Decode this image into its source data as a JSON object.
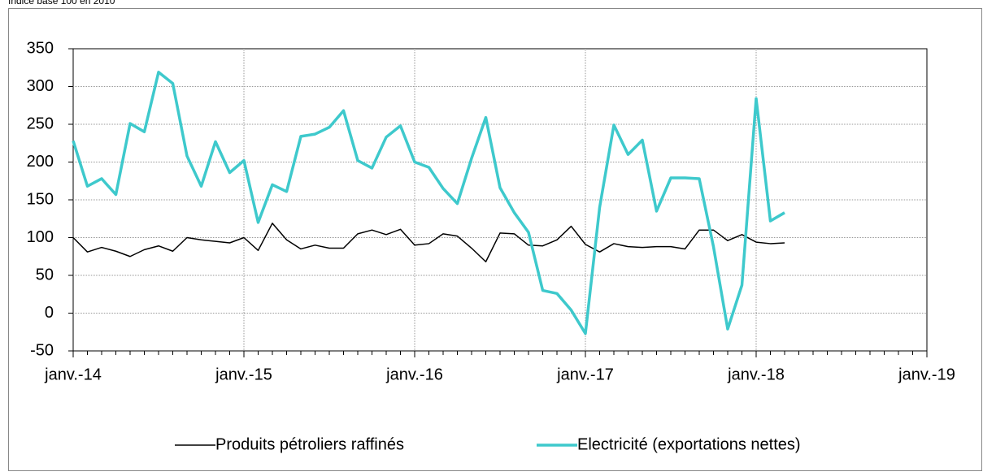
{
  "chart_data": {
    "type": "line",
    "subtitle": "Indice base 100 en 2010",
    "categories": [
      "janv.-14",
      null,
      null,
      null,
      null,
      null,
      null,
      null,
      null,
      null,
      null,
      null,
      "janv.-15",
      null,
      null,
      null,
      null,
      null,
      null,
      null,
      null,
      null,
      null,
      null,
      "janv.-16",
      null,
      null,
      null,
      null,
      null,
      null,
      null,
      null,
      null,
      null,
      null,
      "janv.-17",
      null,
      null,
      null,
      null,
      null,
      null,
      null,
      null,
      null,
      null,
      null,
      "janv.-18",
      null,
      null,
      null,
      null,
      null,
      null,
      null,
      null,
      null,
      null,
      null,
      "janv.-19"
    ],
    "series": [
      {
        "name": "Produits pétroliers raffinés",
        "color": "#000000",
        "width": 1.5,
        "values": [
          100,
          81,
          87,
          82,
          75,
          84,
          89,
          82,
          100,
          97,
          95,
          93,
          100,
          83,
          119,
          97,
          85,
          90,
          86,
          86,
          105,
          110,
          104,
          111,
          90,
          92,
          105,
          102,
          86,
          68,
          106,
          105,
          90,
          89,
          97,
          115,
          91,
          81,
          92,
          88,
          87,
          88,
          88,
          85,
          110,
          110,
          96,
          104,
          94,
          92,
          93,
          null,
          null,
          null,
          null,
          null,
          null,
          null,
          null,
          null,
          null
        ]
      },
      {
        "name": "Electricité (exportations nettes)",
        "color": "#3ec9cc",
        "width": 3.5,
        "values": [
          228,
          168,
          178,
          157,
          251,
          240,
          319,
          304,
          208,
          168,
          227,
          186,
          202,
          120,
          170,
          161,
          234,
          237,
          246,
          268,
          202,
          192,
          233,
          248,
          200,
          193,
          165,
          145,
          205,
          259,
          166,
          133,
          107,
          30,
          26,
          4,
          -27,
          140,
          249,
          210,
          229,
          135,
          179,
          179,
          178,
          88,
          -21,
          37,
          284,
          122,
          133,
          null,
          null,
          null,
          null,
          null,
          null,
          null,
          null,
          null,
          null
        ]
      }
    ],
    "ylim": [
      -50,
      350
    ],
    "yticks": [
      -50,
      0,
      50,
      100,
      150,
      200,
      250,
      300,
      350
    ],
    "grid": true
  }
}
